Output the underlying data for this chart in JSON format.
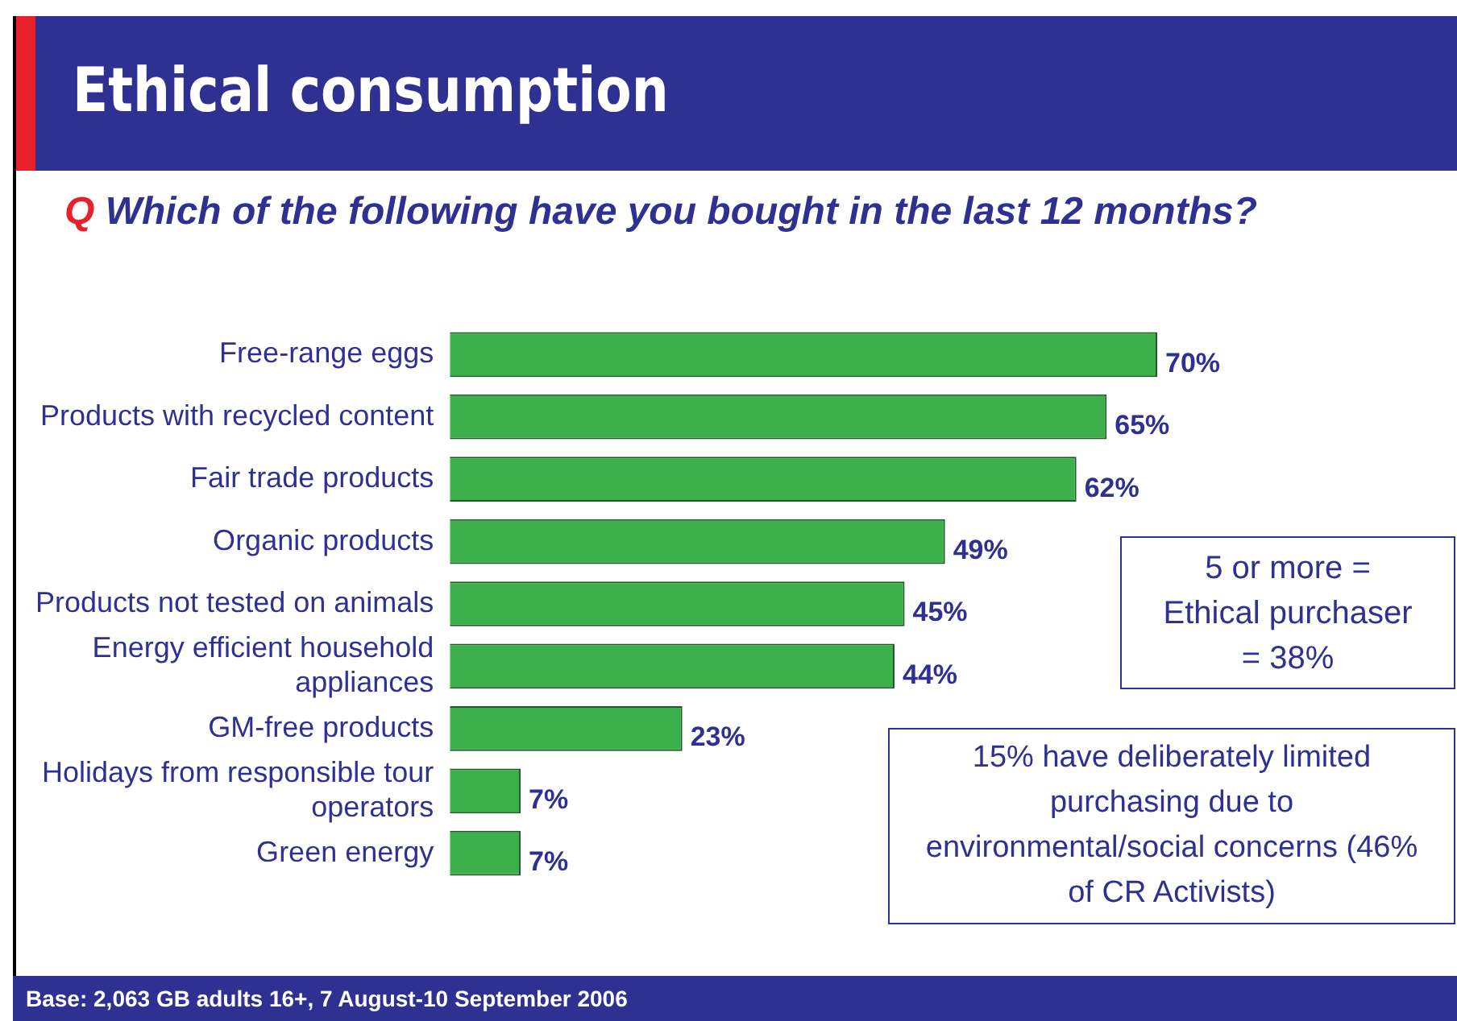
{
  "chart_data": {
    "type": "bar",
    "orientation": "horizontal",
    "title": "Ethical consumption",
    "subtitle": "Q Which of the following have you bought in the last 12 months?",
    "categories": [
      "Free-range eggs",
      "Products with recycled content",
      "Fair trade products",
      "Organic products",
      "Products not tested on animals",
      "Energy efficient household appliances",
      "GM-free products",
      "Holidays from responsible tour operators",
      "Green energy"
    ],
    "values": [
      70,
      65,
      62,
      49,
      45,
      44,
      23,
      7,
      7
    ],
    "value_labels": [
      "70%",
      "65%",
      "62%",
      "49%",
      "45%",
      "44%",
      "23%",
      "7%",
      "7%"
    ],
    "color": "#3cb04a",
    "tick_labels": "y",
    "legend": false,
    "annotations": [
      "5 or more = Ethical purchaser = 38%",
      "15% have deliberately limited purchasing due to environmental/social concerns (46% of CR Activists)",
      "Base: 2,063 GB adults 16+, 7 August-10 September 2006"
    ]
  }
}
